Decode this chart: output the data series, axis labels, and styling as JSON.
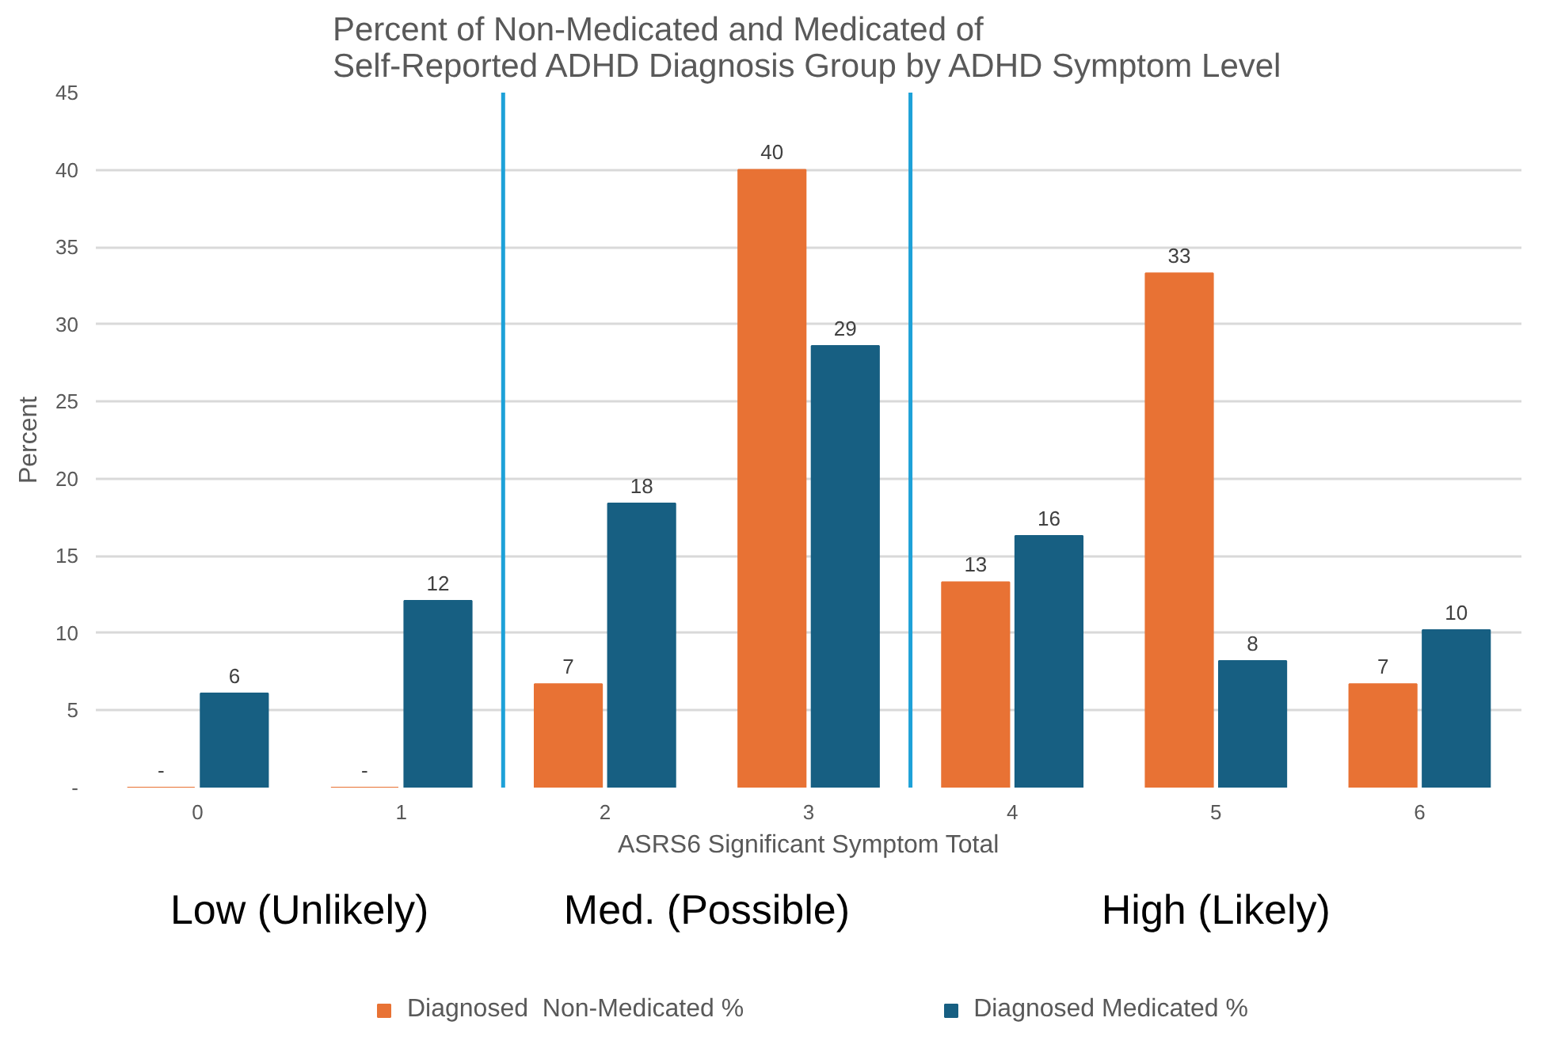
{
  "chart_data": {
    "type": "bar",
    "title": "Percent of Non-Medicated and Medicated of\nSelf-Reported ADHD Diagnosis Group by ADHD Symptom Level",
    "xlabel": "ASRS6 Significant Symptom Total",
    "ylabel": "Percent",
    "categories": [
      "0",
      "1",
      "2",
      "3",
      "4",
      "5",
      "6"
    ],
    "series": [
      {
        "name": "Diagnosed  Non-Medicated %",
        "color": "#e87234",
        "values": [
          0,
          0,
          6.7,
          40,
          13.3,
          33.3,
          6.7
        ],
        "value_labels": [
          "-",
          "-",
          "7",
          "40",
          "13",
          "33",
          "7"
        ]
      },
      {
        "name": "Diagnosed Medicated %",
        "color": "#175f82",
        "values": [
          6.1,
          12.1,
          18.4,
          28.6,
          16.3,
          8.2,
          10.2
        ],
        "value_labels": [
          "6",
          "12",
          "18",
          "29",
          "16",
          "8",
          "10"
        ]
      }
    ],
    "ylim": [
      0,
      45
    ],
    "yticks": [
      {
        "value": 0,
        "label": "-"
      },
      5,
      10,
      15,
      20,
      25,
      30,
      35,
      40,
      45
    ],
    "grid": "y",
    "legend": "bottom",
    "annotations": [
      "Low (Unlikely)",
      "Med. (Possible)",
      "High (Likely)"
    ]
  }
}
